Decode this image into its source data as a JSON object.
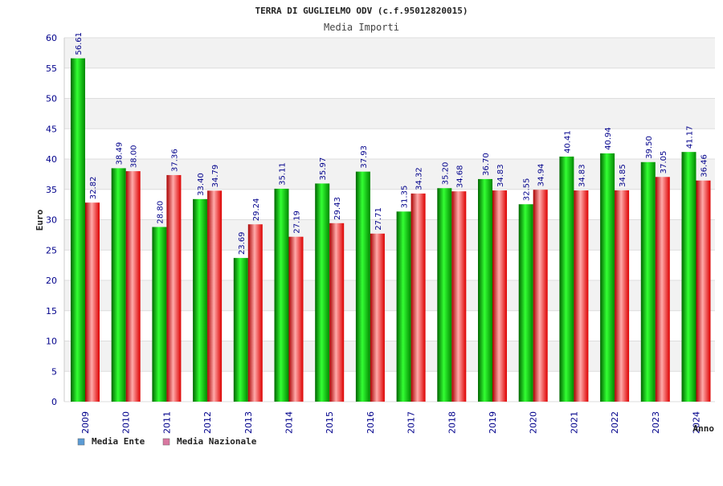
{
  "chart_data": {
    "type": "bar",
    "title": "TERRA DI GUGLIELMO ODV (c.f.95012820015)",
    "subtitle": "Media Importi",
    "xlabel": "Anno",
    "ylabel": "Euro",
    "ylim": [
      0,
      60
    ],
    "ytick_step": 5,
    "grid": true,
    "legend_position": "bottom-left",
    "categories": [
      "2009",
      "2010",
      "2011",
      "2012",
      "2013",
      "2014",
      "2015",
      "2016",
      "2017",
      "2018",
      "2019",
      "2020",
      "2021",
      "2022",
      "2023",
      "2024"
    ],
    "series": [
      {
        "name": "Media Ente",
        "color": "#00cc00",
        "legend_color": "#5b9bd5",
        "values": [
          56.61,
          38.49,
          28.8,
          33.4,
          23.69,
          35.11,
          35.97,
          37.93,
          31.35,
          35.2,
          36.7,
          32.55,
          40.41,
          40.94,
          39.5,
          41.17
        ],
        "labels": [
          "56.61",
          "38.49",
          "28.80",
          "33.40",
          "23.69",
          "35.11",
          "35.97",
          "37.93",
          "31.35",
          "35.20",
          "36.70",
          "32.55",
          "40.41",
          "40.94",
          "39.50",
          "41.17"
        ]
      },
      {
        "name": "Media Nazionale",
        "color": "#ee1111",
        "legend_color": "#d977a0",
        "values": [
          32.82,
          38.0,
          37.36,
          34.79,
          29.24,
          27.19,
          29.43,
          27.71,
          34.32,
          34.68,
          34.83,
          34.94,
          34.83,
          34.85,
          37.05,
          36.46
        ],
        "labels": [
          "32.82",
          "38.00",
          "37.36",
          "34.79",
          "29.24",
          "27.19",
          "29.43",
          "27.71",
          "34.32",
          "34.68",
          "34.83",
          "34.94",
          "34.83",
          "34.85",
          "37.05",
          "36.46"
        ]
      }
    ]
  }
}
